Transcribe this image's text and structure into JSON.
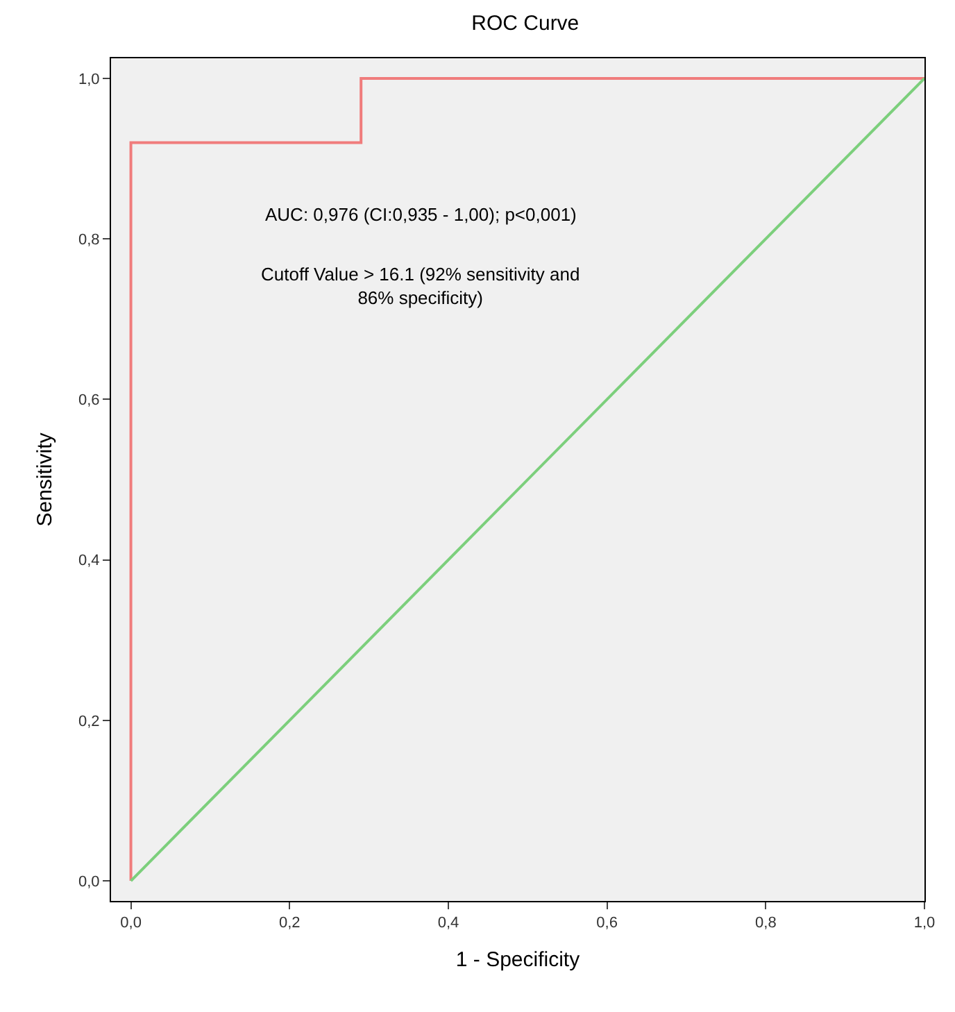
{
  "chart_data": {
    "type": "line",
    "title": "ROC Curve",
    "xlabel": "1 - Specificity",
    "ylabel": "Sensitivity",
    "series": [
      {
        "color": "#f07c7c",
        "x": [
          0,
          0,
          0.29,
          0.29,
          1
        ],
        "values": [
          0,
          0.92,
          0.92,
          1,
          1
        ]
      },
      {
        "color": "#7ccf7c",
        "x": [
          0,
          1
        ],
        "values": [
          0,
          1
        ]
      }
    ],
    "xlim": [
      -0.025,
      1.0
    ],
    "ylim": [
      -0.025,
      1.025
    ],
    "xticks": [
      {
        "value": 0,
        "label": "0,0"
      },
      {
        "value": 0.2,
        "label": "0,2"
      },
      {
        "value": 0.4,
        "label": "0,4"
      },
      {
        "value": 0.6,
        "label": "0,6"
      },
      {
        "value": 0.8,
        "label": "0,8"
      },
      {
        "value": 1,
        "label": "1,0"
      }
    ],
    "yticks": [
      {
        "value": 0,
        "label": "0,0"
      },
      {
        "value": 0.2,
        "label": "0,2"
      },
      {
        "value": 0.4,
        "label": "0,4"
      },
      {
        "value": 0.6,
        "label": "0,6"
      },
      {
        "value": 0.8,
        "label": "0,8"
      },
      {
        "value": 1,
        "label": "1,0"
      }
    ],
    "annotations": [
      "AUC: 0,976 (CI:0,935 - 1,00); p<0,001)",
      "Cutoff Value > 16.1 (92% sensitivity and 86% specificity)"
    ],
    "grid": false,
    "marker": "none",
    "line_style": "solid"
  }
}
